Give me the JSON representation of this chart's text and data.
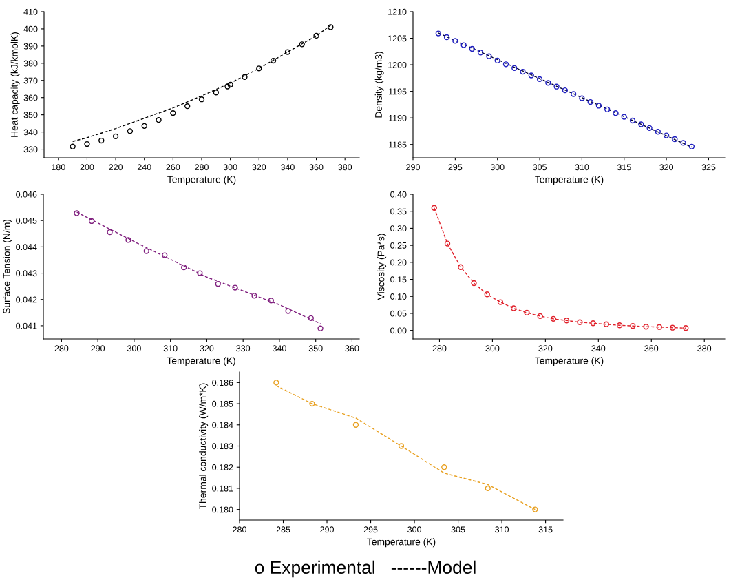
{
  "chart_data": [
    {
      "type": "scatter",
      "xlabel": "Temperature (K)",
      "ylabel": "Heat capacity (kJ/kmolK)",
      "xlim": [
        170,
        390
      ],
      "xticks": [
        180,
        200,
        220,
        240,
        260,
        280,
        300,
        320,
        340,
        360,
        380
      ],
      "ylim": [
        325,
        410
      ],
      "yticks": [
        330,
        340,
        350,
        360,
        370,
        380,
        390,
        400,
        410
      ],
      "grid": false,
      "legend": false,
      "series": [
        {
          "type": "scatter",
          "color": "#000000",
          "marker": "circle",
          "x": [
            190,
            200,
            210,
            220,
            230,
            240,
            250,
            260,
            270,
            280,
            290,
            298,
            300,
            310,
            320,
            330,
            340,
            350,
            360,
            370
          ],
          "values": [
            331.5,
            333,
            335,
            337.5,
            340.5,
            343.5,
            347,
            351,
            355,
            359,
            363,
            366.5,
            367.5,
            372,
            377,
            381.5,
            386.5,
            391,
            396,
            401
          ]
        },
        {
          "type": "line",
          "color": "#000000",
          "line_style": "dashed",
          "x": [
            190,
            200,
            220,
            240,
            260,
            280,
            300,
            320,
            340,
            360,
            370
          ],
          "values": [
            334.5,
            336.7,
            342,
            348,
            354,
            361,
            368.5,
            377,
            386.5,
            396,
            402
          ]
        }
      ]
    },
    {
      "type": "scatter",
      "xlabel": "Temperature (K)",
      "ylabel": "Density (kg/m3)",
      "xlim": [
        290,
        327
      ],
      "xticks": [
        290,
        295,
        300,
        305,
        310,
        315,
        320,
        325
      ],
      "ylim": [
        1182.5,
        1210
      ],
      "yticks": [
        1185,
        1190,
        1195,
        1200,
        1205,
        1210
      ],
      "grid": false,
      "legend": false,
      "series": [
        {
          "type": "scatter",
          "color": "#2020c0",
          "marker": "circle",
          "x": [
            293,
            294,
            295,
            296,
            297,
            298,
            299,
            300,
            301,
            302,
            303,
            304,
            305,
            306,
            307,
            308,
            309,
            310,
            311,
            312,
            313,
            314,
            315,
            316,
            317,
            318,
            319,
            320,
            321,
            322,
            323
          ],
          "values": [
            1205.9,
            1205.2,
            1204.5,
            1203.7,
            1203.0,
            1202.3,
            1201.6,
            1200.8,
            1200.1,
            1199.4,
            1198.7,
            1198.0,
            1197.3,
            1196.6,
            1195.9,
            1195.2,
            1194.5,
            1193.7,
            1193.0,
            1192.3,
            1191.6,
            1190.9,
            1190.2,
            1189.5,
            1188.8,
            1188.1,
            1187.4,
            1186.7,
            1186.0,
            1185.3,
            1184.6
          ]
        },
        {
          "type": "line",
          "color": "#000033",
          "line_style": "dashed",
          "x": [
            293,
            323
          ],
          "values": [
            1206,
            1184.5
          ]
        }
      ]
    },
    {
      "type": "scatter",
      "xlabel": "Temperature (K)",
      "ylabel": "Surface Tension (N/m)",
      "xlim": [
        275,
        362
      ],
      "xticks": [
        280,
        290,
        300,
        310,
        320,
        330,
        340,
        350,
        360
      ],
      "ylim": [
        0.0405,
        0.046
      ],
      "yticks": [
        {
          "value": 0.041,
          "label": "0.041"
        },
        {
          "value": 0.042,
          "label": "0.042"
        },
        {
          "value": 0.043,
          "label": "0.043"
        },
        {
          "value": 0.044,
          "label": "0.044"
        },
        {
          "value": 0.045,
          "label": "0.045"
        },
        {
          "value": 0.046,
          "label": "0.046"
        }
      ],
      "grid": false,
      "legend": false,
      "series": [
        {
          "type": "scatter",
          "color": "#80207f",
          "marker": "circle",
          "x": [
            284.2,
            288.3,
            293.3,
            298.4,
            303.4,
            308.4,
            313.7,
            318.1,
            323.1,
            327.8,
            333.1,
            337.7,
            342.4,
            348.7,
            351.3
          ],
          "values": [
            0.04528,
            0.04498,
            0.04456,
            0.04426,
            0.04384,
            0.04368,
            0.04322,
            0.043,
            0.04259,
            0.04245,
            0.04214,
            0.04196,
            0.04156,
            0.04129,
            0.0409
          ]
        },
        {
          "type": "line",
          "color": "#80207f",
          "line_style": "dashed",
          "x": [
            284.2,
            300,
            320,
            340,
            351.3
          ],
          "values": [
            0.04532,
            0.0442,
            0.04285,
            0.0418,
            0.04108
          ]
        }
      ]
    },
    {
      "type": "scatter",
      "xlabel": "Temperature (K)",
      "ylabel": "Viscosity (Pa*s)",
      "xlim": [
        270,
        388
      ],
      "xticks": [
        280,
        300,
        320,
        340,
        360,
        380
      ],
      "ylim": [
        -0.025,
        0.4
      ],
      "yticks": [
        {
          "value": 0,
          "label": "0.00"
        },
        {
          "value": 0.05,
          "label": "0.05"
        },
        {
          "value": 0.1,
          "label": "0.10"
        },
        {
          "value": 0.15,
          "label": "0.15"
        },
        {
          "value": 0.2,
          "label": "0.20"
        },
        {
          "value": 0.25,
          "label": "0.25"
        },
        {
          "value": 0.3,
          "label": "0.30"
        },
        {
          "value": 0.35,
          "label": "0.35"
        },
        {
          "value": 0.4,
          "label": "0.40"
        }
      ],
      "grid": false,
      "legend": false,
      "series": [
        {
          "type": "scatter",
          "color": "#e0202a",
          "marker": "circle",
          "x": [
            278,
            283,
            288,
            293,
            298,
            303,
            308,
            313,
            318,
            323,
            328,
            333,
            338,
            343,
            348,
            353,
            358,
            363,
            368,
            373
          ],
          "values": [
            0.36,
            0.255,
            0.186,
            0.139,
            0.106,
            0.083,
            0.065,
            0.052,
            0.042,
            0.034,
            0.029,
            0.024,
            0.021,
            0.018,
            0.015,
            0.013,
            0.011,
            0.01,
            0.008,
            0.007
          ]
        },
        {
          "type": "line",
          "color": "#e0202a",
          "line_style": "dashed",
          "x": [
            278,
            283,
            288,
            293,
            298,
            303,
            308,
            313,
            318,
            323,
            328,
            333,
            338,
            343,
            348,
            353,
            358,
            363,
            368,
            373
          ],
          "values": [
            0.36,
            0.255,
            0.186,
            0.139,
            0.106,
            0.083,
            0.065,
            0.052,
            0.042,
            0.034,
            0.029,
            0.024,
            0.021,
            0.018,
            0.015,
            0.013,
            0.011,
            0.01,
            0.008,
            0.007
          ]
        }
      ]
    },
    {
      "type": "scatter",
      "xlabel": "Temperature (K)",
      "ylabel": "Thermal conductivity (W/m*K)",
      "xlim": [
        280,
        317
      ],
      "xticks": [
        280,
        285,
        290,
        295,
        300,
        305,
        310,
        315
      ],
      "ylim": [
        0.1795,
        0.1865
      ],
      "yticks": [
        {
          "value": 0.18,
          "label": "0.180"
        },
        {
          "value": 0.181,
          "label": "0.181"
        },
        {
          "value": 0.182,
          "label": "0.182"
        },
        {
          "value": 0.183,
          "label": "0.183"
        },
        {
          "value": 0.184,
          "label": "0.184"
        },
        {
          "value": 0.185,
          "label": "0.185"
        },
        {
          "value": 0.186,
          "label": "0.186"
        }
      ],
      "grid": false,
      "legend": false,
      "annotations": [
        "o Experimental   ------Model"
      ],
      "series": [
        {
          "type": "scatter",
          "color": "#e8a020",
          "marker": "circle",
          "x": [
            284.2,
            288.3,
            293.3,
            298.5,
            303.4,
            308.4,
            313.8
          ],
          "values": [
            0.186,
            0.185,
            0.184,
            0.183,
            0.182,
            0.181,
            0.18
          ]
        },
        {
          "type": "line",
          "color": "#e8a020",
          "line_style": "dashed",
          "x": [
            284.2,
            288.3,
            293.3,
            298.5,
            303.4,
            308.4,
            313.8
          ],
          "values": [
            0.18585,
            0.185,
            0.18432,
            0.183,
            0.18172,
            0.18118,
            0.18
          ]
        }
      ]
    }
  ]
}
